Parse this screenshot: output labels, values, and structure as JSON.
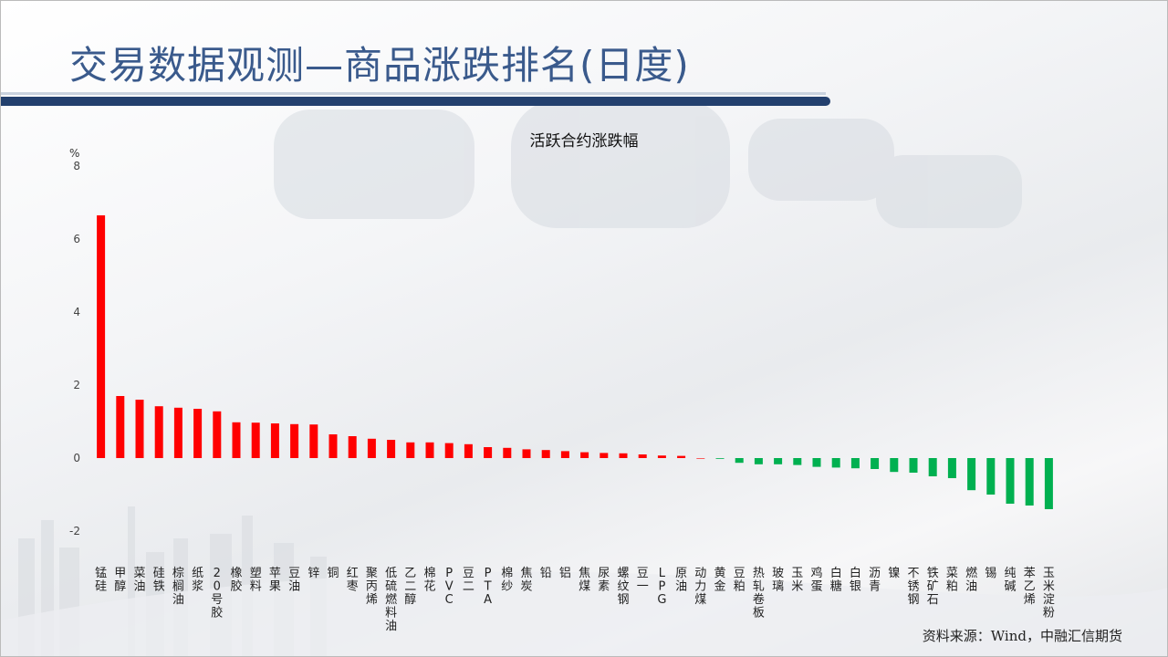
{
  "page": {
    "title": "交易数据观测—商品涨跌排名(日度)",
    "source": "资料来源：Wind，中融汇信期货"
  },
  "colors": {
    "title": "#3a5a8c",
    "title_rule": "#23406e",
    "positive": "#ff0000",
    "negative": "#00b050"
  },
  "chart_data": {
    "type": "bar",
    "title": "活跃合约涨跌幅",
    "ylabel": "%",
    "ylim": [
      -2,
      8
    ],
    "yticks": [
      -2,
      0,
      2,
      4,
      6,
      8
    ],
    "grid": false,
    "categories": [
      "锰硅",
      "甲醇",
      "菜油",
      "硅铁",
      "棕榈油",
      "纸浆",
      "20号胶",
      "橡胶",
      "塑料",
      "苹果",
      "豆油",
      "锌",
      "铜",
      "红枣",
      "聚丙烯",
      "低硫燃料油",
      "乙二醇",
      "棉花",
      "PVC",
      "豆二",
      "PTA",
      "棉纱",
      "焦炭",
      "铅",
      "铝",
      "焦煤",
      "尿素",
      "螺纹钢",
      "豆一",
      "LPG",
      "原油",
      "动力煤",
      "黄金",
      "豆粕",
      "热轧卷板",
      "玻璃",
      "玉米",
      "鸡蛋",
      "白糖",
      "白银",
      "沥青",
      "镍",
      "不锈钢",
      "铁矿石",
      "菜粕",
      "燃油",
      "锡",
      "纯碱",
      "苯乙烯",
      "玉米淀粉"
    ],
    "values": [
      6.65,
      1.7,
      1.6,
      1.42,
      1.38,
      1.35,
      1.28,
      0.98,
      0.97,
      0.95,
      0.93,
      0.92,
      0.65,
      0.6,
      0.53,
      0.5,
      0.43,
      0.43,
      0.41,
      0.38,
      0.3,
      0.28,
      0.24,
      0.22,
      0.19,
      0.16,
      0.14,
      0.13,
      0.1,
      0.07,
      0.06,
      0.0,
      -0.02,
      -0.13,
      -0.17,
      -0.17,
      -0.19,
      -0.24,
      -0.26,
      -0.28,
      -0.3,
      -0.38,
      -0.4,
      -0.5,
      -0.55,
      -0.88,
      -1.0,
      -1.25,
      -1.3,
      -1.4
    ]
  }
}
